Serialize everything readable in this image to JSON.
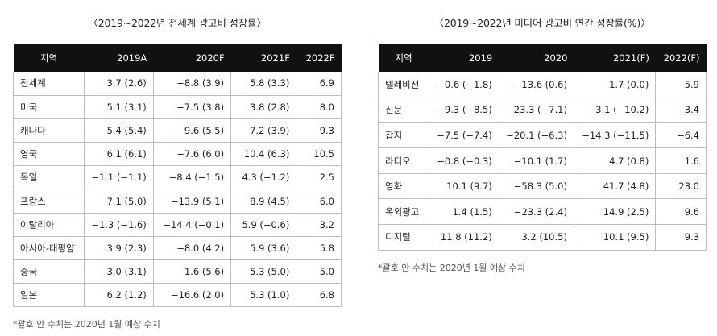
{
  "left": {
    "title": "〈2019~2022년 전세계 광고비 성장률〉",
    "headers": [
      "지역",
      "2019A",
      "2020F",
      "2021F",
      "2022F"
    ],
    "rows": [
      [
        "전세계",
        "3.7 (2.6)",
        "−8.8 (3.9)",
        "5.8 (3.3)",
        "6.9"
      ],
      [
        "미국",
        "5.1 (3.1)",
        "−7.5 (3.8)",
        "3.8 (2.8)",
        "8.0"
      ],
      [
        "캐나다",
        "5.4 (5.4)",
        "−9.6 (5.5)",
        "7.2 (3.9)",
        "9.3"
      ],
      [
        "영국",
        "6.1 (6.1)",
        "−7.6 (6.0)",
        "10.4 (6.3)",
        "10.5"
      ],
      [
        "독일",
        "−1.1 (−1.1)",
        "−8.4 (−1.5)",
        "4.3 (−1.2)",
        "2.5"
      ],
      [
        "프랑스",
        "7.1 (5.0)",
        "−13.9 (5.1)",
        "8.9 (4.5)",
        "6.0"
      ],
      [
        "이탈리아",
        "−1.3 (−1.6)",
        "−14.4 (−0.1)",
        "5.9 (−0.6)",
        "3.2"
      ],
      [
        "아시아-태평양",
        "3.9 (2.3)",
        "−8.0 (4.2)",
        "5.9 (3.6)",
        "5.8"
      ],
      [
        "중국",
        "3.0 (3.1)",
        "1.6 (5.6)",
        "5.3 (5.0)",
        "5.0"
      ],
      [
        "일본",
        "6.2 (1.2)",
        "−16.6 (2.0)",
        "5.3 (1.0)",
        "6.8"
      ]
    ],
    "note": "*괄호 안 수치는 2020년 1월 예상 수치"
  },
  "right": {
    "title": "〈2019~2022년 미디어 광고비 연간 성장률(%)〉",
    "headers": [
      "지역",
      "2019",
      "2020",
      "2021(F)",
      "2022(F)"
    ],
    "rows": [
      [
        "텔레비전",
        "−0.6 (−1.8)",
        "−13.6 (0.6)",
        "1.7 (0.0)",
        "5.9"
      ],
      [
        "신문",
        "−9.3 (−8.5)",
        "−23.3 (−7.1)",
        "−3.1 (−10.2)",
        "−3.4"
      ],
      [
        "잡지",
        "−7.5 (−7.4)",
        "−20.1 (−6.3)",
        "−14.3 (−11.5)",
        "−6.4"
      ],
      [
        "라디오",
        "−0.8 (−0.3)",
        "−10.1 (1.7)",
        "4.7 (0.8)",
        "1.6"
      ],
      [
        "영화",
        "10.1 (9.7)",
        "−58.3 (5.0)",
        "41.7 (4.8)",
        "23.0"
      ],
      [
        "옥외광고",
        "1.4 (1.5)",
        "−23.3 (2.4)",
        "14.9 (2.5)",
        "9.6"
      ],
      [
        "디지털",
        "11.8 (11.2)",
        "3.2 (10.5)",
        "10.1 (9.5)",
        "9.3"
      ]
    ],
    "note": "*괄호 안 수치는 2020년 1월 예상 수치"
  }
}
